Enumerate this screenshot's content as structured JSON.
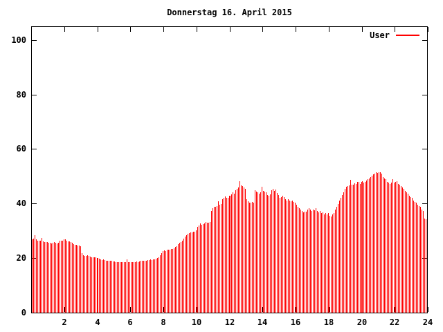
{
  "window": {
    "background": "#ffffff"
  },
  "chart_data": {
    "type": "bar",
    "style": "impulses",
    "title": "Donnerstag 16. April 2015",
    "xlabel": "",
    "ylabel": "",
    "xlim": [
      0,
      24
    ],
    "ylim": [
      0,
      105
    ],
    "x_ticks": [
      2,
      4,
      6,
      8,
      10,
      12,
      14,
      16,
      18,
      20,
      22,
      24
    ],
    "y_ticks": [
      0,
      20,
      40,
      60,
      80,
      100
    ],
    "grid": false,
    "legend_position": "top-right",
    "axis_color": "#000000",
    "text_color": "#000000",
    "x_start_hour": 0,
    "x_step_minutes": 5,
    "series": [
      {
        "name": "User",
        "color": "#ff0000",
        "values": [
          26.8,
          27.2,
          28.5,
          27.0,
          26.5,
          26.4,
          26.4,
          27.4,
          26.0,
          25.9,
          25.9,
          25.8,
          25.5,
          25.5,
          25.4,
          25.5,
          25.9,
          25.5,
          25.4,
          25.5,
          26.3,
          26.4,
          26.5,
          26.8,
          26.9,
          26.4,
          26.1,
          26.0,
          25.8,
          25.7,
          25.0,
          24.9,
          24.8,
          24.6,
          24.5,
          24.4,
          21.9,
          21.1,
          20.8,
          20.7,
          21.1,
          20.9,
          20.5,
          20.4,
          20.3,
          20.3,
          20.2,
          20.1,
          20.0,
          19.7,
          19.5,
          19.4,
          19.5,
          19.3,
          19.1,
          19.0,
          19.0,
          18.9,
          18.9,
          18.8,
          18.7,
          18.6,
          18.6,
          18.5,
          18.6,
          18.6,
          18.5,
          18.6,
          18.5,
          19.6,
          18.6,
          18.5,
          18.5,
          18.5,
          18.6,
          18.5,
          18.7,
          18.6,
          18.8,
          18.9,
          19.0,
          18.9,
          19.1,
          19.0,
          19.2,
          19.3,
          19.5,
          19.4,
          19.6,
          19.5,
          19.8,
          20.0,
          20.4,
          21.0,
          21.8,
          22.6,
          22.9,
          22.6,
          23.0,
          23.2,
          23.1,
          23.4,
          23.3,
          23.6,
          24.0,
          24.4,
          25.0,
          25.5,
          25.9,
          26.5,
          27.2,
          28.0,
          28.4,
          28.8,
          29.1,
          29.3,
          29.5,
          29.7,
          29.6,
          30.2,
          31.4,
          32.0,
          32.7,
          32.3,
          32.4,
          32.7,
          33.1,
          32.9,
          33.0,
          33.2,
          37.4,
          38.3,
          38.7,
          38.8,
          39.1,
          40.8,
          39.6,
          39.8,
          41.6,
          42.0,
          42.5,
          42.2,
          42.0,
          42.9,
          42.9,
          43.3,
          44.1,
          43.7,
          45.0,
          45.4,
          45.8,
          48.3,
          46.6,
          46.3,
          45.8,
          45.4,
          41.6,
          40.8,
          40.3,
          40.3,
          40.5,
          40.4,
          45.0,
          44.4,
          44.1,
          43.7,
          44.1,
          46.1,
          44.6,
          44.3,
          44.1,
          43.1,
          42.9,
          43.3,
          45.0,
          45.4,
          44.6,
          45.2,
          44.0,
          43.0,
          42.0,
          42.4,
          42.9,
          42.4,
          41.6,
          41.2,
          41.6,
          41.2,
          40.8,
          41.0,
          40.6,
          40.3,
          39.5,
          38.9,
          38.2,
          37.8,
          37.4,
          36.9,
          37.1,
          37.0,
          37.8,
          38.2,
          37.9,
          37.4,
          37.8,
          37.5,
          38.2,
          37.4,
          36.9,
          37.3,
          36.5,
          36.9,
          36.1,
          36.5,
          36.1,
          36.6,
          35.5,
          35.3,
          36.1,
          36.6,
          37.8,
          38.7,
          39.9,
          41.0,
          42.0,
          43.1,
          44.2,
          45.3,
          46.1,
          46.3,
          46.6,
          48.8,
          46.8,
          47.0,
          47.5,
          47.2,
          48.0,
          47.9,
          47.2,
          48.0,
          48.3,
          47.6,
          48.0,
          48.5,
          48.9,
          49.3,
          49.8,
          50.1,
          50.6,
          51.0,
          51.4,
          51.3,
          51.6,
          51.5,
          51.1,
          49.7,
          49.3,
          48.9,
          48.0,
          47.6,
          47.2,
          47.6,
          48.9,
          47.6,
          48.0,
          48.3,
          47.2,
          46.8,
          46.3,
          45.9,
          45.4,
          44.6,
          44.1,
          43.7,
          42.9,
          42.4,
          42.0,
          41.2,
          40.7,
          40.3,
          39.5,
          39.1,
          38.7,
          37.8,
          37.4,
          34.4,
          34.2,
          34.3
        ]
      }
    ]
  }
}
